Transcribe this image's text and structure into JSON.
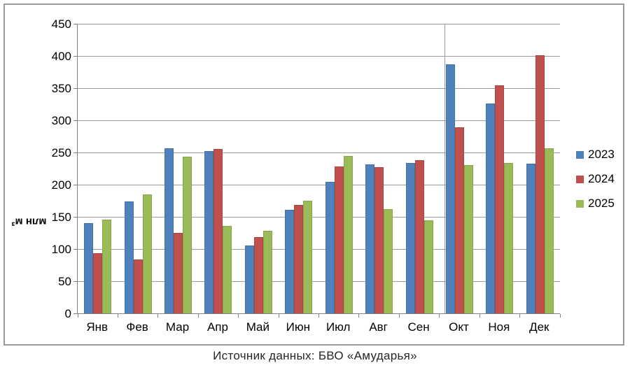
{
  "caption": "Источник данных: БВО «Амударья»",
  "chart_data": {
    "type": "bar",
    "title": "",
    "ylabel": "млн м³",
    "xlabel": "",
    "ylim": [
      0,
      450
    ],
    "ytick_step": 50,
    "grid": true,
    "legend_position": "right",
    "categories": [
      "Янв",
      "Фев",
      "Мар",
      "Апр",
      "Май",
      "Июн",
      "Июл",
      "Авг",
      "Сен",
      "Окт",
      "Ноя",
      "Дек"
    ],
    "series": [
      {
        "name": "2023",
        "color": "#4f81bd",
        "border_color": "#44719f",
        "values": [
          140,
          174,
          256,
          252,
          105,
          161,
          204,
          232,
          234,
          387,
          326,
          233
        ]
      },
      {
        "name": "2024",
        "color": "#c0504d",
        "border_color": "#a8453f",
        "values": [
          93,
          84,
          125,
          255,
          118,
          168,
          228,
          227,
          238,
          289,
          354,
          401
        ]
      },
      {
        "name": "2025",
        "color": "#9bbb59",
        "border_color": "#87a64b",
        "values": [
          146,
          185,
          243,
          136,
          128,
          175,
          245,
          162,
          145,
          230,
          234,
          257
        ]
      }
    ],
    "annotations": {
      "vertical_divider_before_category": "Окт"
    }
  },
  "colors": {
    "background": "#ffffff",
    "frame_border": "#9a9a9a",
    "gridline": "#9b9b9b",
    "axis_line": "#7f7f7f",
    "text": "#000000",
    "caption_text": "#262626"
  }
}
